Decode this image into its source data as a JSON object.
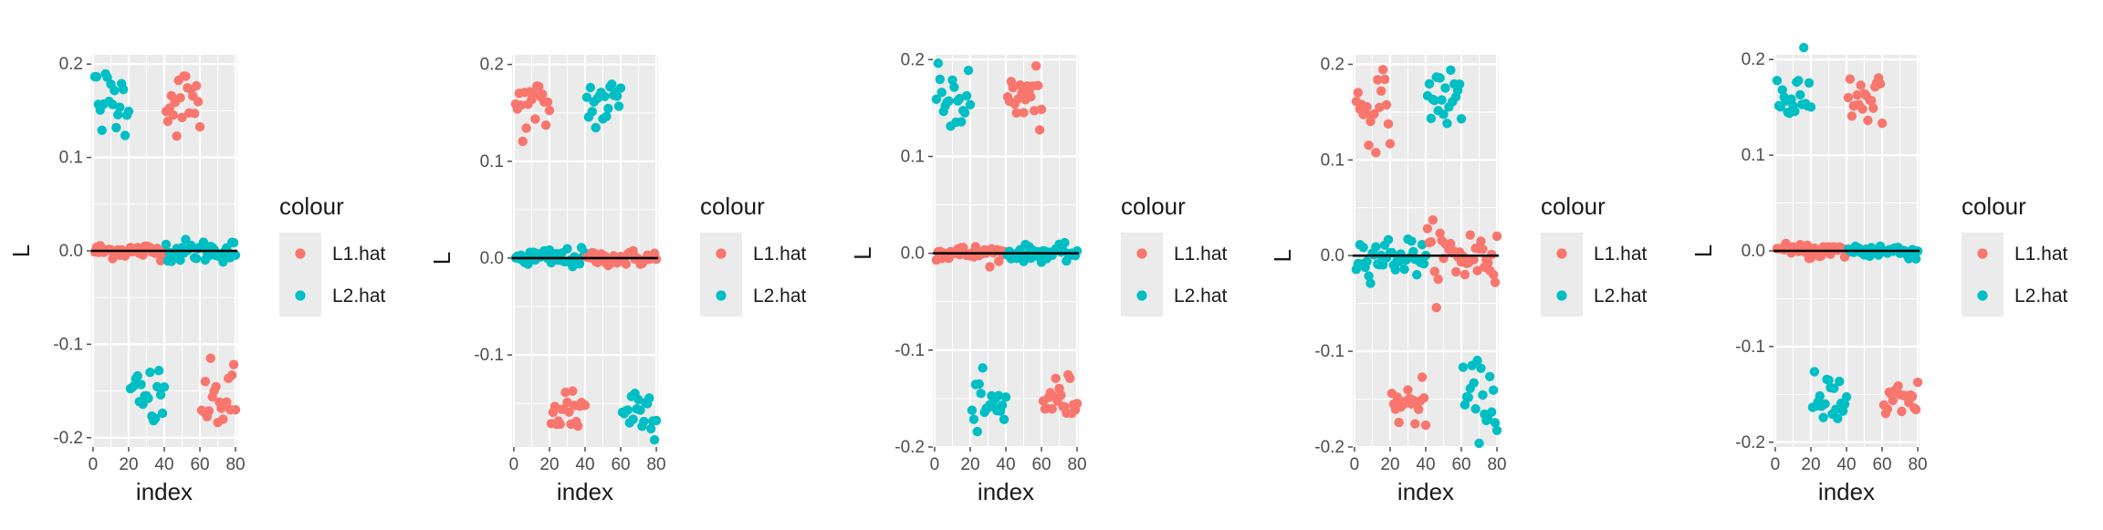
{
  "theme": {
    "panel_bg": "#EBEBEB",
    "grid_color": "#FFFFFF",
    "legend_key_bg": "#EBEBEB",
    "text_color": "#1A1A1A",
    "tick_color": "#4D4D4D",
    "zero_line_color": "#000000"
  },
  "legend": {
    "title": "colour",
    "entries": [
      {
        "label": "L1.hat",
        "color": "#F8766D"
      },
      {
        "label": "L2.hat",
        "color": "#00BFC4"
      }
    ]
  },
  "chart_data": [
    {
      "type": "scatter",
      "xlabel": "index",
      "ylabel": "L",
      "xlim": [
        -1,
        81
      ],
      "ylim": [
        -0.21,
        0.21
      ],
      "x_ticks": [
        0,
        20,
        40,
        60,
        80
      ],
      "x_tick_labels": [
        "0",
        "20",
        "40",
        "60",
        "80"
      ],
      "y_ticks": [
        -0.2,
        -0.1,
        0.0,
        0.1,
        0.2
      ],
      "y_tick_labels": [
        "-0.2",
        "-0.1",
        "0.0",
        "0.1",
        "0.2"
      ],
      "grid": true,
      "legend_position": "right",
      "zero_line": true,
      "clusters": [
        {
          "series": "L1.hat",
          "x": [
            1,
            40
          ],
          "y_center": 0.0,
          "spread": 0.004
        },
        {
          "series": "L2.hat",
          "x": [
            41,
            80
          ],
          "y_center": 0.0,
          "spread": 0.006
        },
        {
          "series": "L2.hat",
          "x": [
            1,
            20
          ],
          "y_center": 0.16,
          "spread": 0.018
        },
        {
          "series": "L1.hat",
          "x": [
            41,
            60
          ],
          "y_center": 0.16,
          "spread": 0.018
        },
        {
          "series": "L2.hat",
          "x": [
            21,
            40
          ],
          "y_center": -0.16,
          "spread": 0.018
        },
        {
          "series": "L1.hat",
          "x": [
            61,
            80
          ],
          "y_center": -0.16,
          "spread": 0.018
        }
      ]
    },
    {
      "type": "scatter",
      "xlabel": "index",
      "ylabel": "L",
      "xlim": [
        -1,
        81
      ],
      "ylim": [
        -0.195,
        0.21
      ],
      "x_ticks": [
        0,
        20,
        40,
        60,
        80
      ],
      "x_tick_labels": [
        "0",
        "20",
        "40",
        "60",
        "80"
      ],
      "y_ticks": [
        -0.1,
        0.0,
        0.1,
        0.2
      ],
      "y_tick_labels": [
        "-0.1",
        "0.0",
        "0.1",
        "0.2"
      ],
      "grid": true,
      "legend_position": "right",
      "zero_line": true,
      "clusters": [
        {
          "series": "L2.hat",
          "x": [
            1,
            40
          ],
          "y_center": 0.0,
          "spread": 0.005
        },
        {
          "series": "L1.hat",
          "x": [
            41,
            80
          ],
          "y_center": 0.0,
          "spread": 0.004
        },
        {
          "series": "L1.hat",
          "x": [
            1,
            20
          ],
          "y_center": 0.155,
          "spread": 0.015
        },
        {
          "series": "L2.hat",
          "x": [
            41,
            60
          ],
          "y_center": 0.16,
          "spread": 0.015
        },
        {
          "series": "L1.hat",
          "x": [
            21,
            40
          ],
          "y_center": -0.155,
          "spread": 0.015
        },
        {
          "series": "L2.hat",
          "x": [
            61,
            80
          ],
          "y_center": -0.155,
          "spread": 0.015
        }
      ]
    },
    {
      "type": "scatter",
      "xlabel": "index",
      "ylabel": "L",
      "xlim": [
        -1,
        81
      ],
      "ylim": [
        -0.2,
        0.205
      ],
      "x_ticks": [
        0,
        20,
        40,
        60,
        80
      ],
      "x_tick_labels": [
        "0",
        "20",
        "40",
        "60",
        "80"
      ],
      "y_ticks": [
        -0.2,
        -0.1,
        0.0,
        0.1,
        0.2
      ],
      "y_tick_labels": [
        "-0.2",
        "-0.1",
        "0.0",
        "0.1",
        "0.2"
      ],
      "grid": true,
      "legend_position": "right",
      "zero_line": true,
      "clusters": [
        {
          "series": "L1.hat",
          "x": [
            1,
            40
          ],
          "y_center": 0.0,
          "spread": 0.004
        },
        {
          "series": "L2.hat",
          "x": [
            41,
            80
          ],
          "y_center": 0.0,
          "spread": 0.004
        },
        {
          "series": "L2.hat",
          "x": [
            1,
            20
          ],
          "y_center": 0.16,
          "spread": 0.016
        },
        {
          "series": "L1.hat",
          "x": [
            41,
            60
          ],
          "y_center": 0.16,
          "spread": 0.016
        },
        {
          "series": "L2.hat",
          "x": [
            21,
            40
          ],
          "y_center": -0.16,
          "spread": 0.015
        },
        {
          "series": "L1.hat",
          "x": [
            61,
            80
          ],
          "y_center": -0.15,
          "spread": 0.012
        }
      ]
    },
    {
      "type": "scatter",
      "xlabel": "index",
      "ylabel": "L",
      "xlim": [
        -1,
        81
      ],
      "ylim": [
        -0.2,
        0.21
      ],
      "x_ticks": [
        0,
        20,
        40,
        60,
        80
      ],
      "x_tick_labels": [
        "0",
        "20",
        "40",
        "60",
        "80"
      ],
      "y_ticks": [
        -0.2,
        -0.1,
        0.0,
        0.1,
        0.2
      ],
      "y_tick_labels": [
        "-0.2",
        "-0.1",
        "0.0",
        "0.1",
        "0.2"
      ],
      "grid": true,
      "legend_position": "right",
      "zero_line": true,
      "clusters": [
        {
          "series": "L2.hat",
          "x": [
            1,
            40
          ],
          "y_center": 0.0,
          "spread": 0.01
        },
        {
          "series": "L1.hat",
          "x": [
            41,
            80
          ],
          "y_center": 0.0,
          "spread": 0.016
        },
        {
          "series": "L1.hat",
          "x": [
            1,
            20
          ],
          "y_center": 0.155,
          "spread": 0.018
        },
        {
          "series": "L2.hat",
          "x": [
            41,
            60
          ],
          "y_center": 0.165,
          "spread": 0.015
        },
        {
          "series": "L1.hat",
          "x": [
            21,
            40
          ],
          "y_center": -0.155,
          "spread": 0.012
        },
        {
          "series": "L2.hat",
          "x": [
            61,
            80
          ],
          "y_center": -0.15,
          "spread": 0.018
        }
      ]
    },
    {
      "type": "scatter",
      "xlabel": "index",
      "ylabel": "L",
      "xlim": [
        -1,
        81
      ],
      "ylim": [
        -0.205,
        0.205
      ],
      "x_ticks": [
        0,
        20,
        40,
        60,
        80
      ],
      "x_tick_labels": [
        "0",
        "20",
        "40",
        "60",
        "80"
      ],
      "y_ticks": [
        -0.2,
        -0.1,
        0.0,
        0.1,
        0.2
      ],
      "y_tick_labels": [
        "-0.2",
        "-0.1",
        "0.0",
        "0.1",
        "0.2"
      ],
      "grid": true,
      "legend_position": "right",
      "zero_line": true,
      "clusters": [
        {
          "series": "L1.hat",
          "x": [
            1,
            40
          ],
          "y_center": 0.0,
          "spread": 0.004
        },
        {
          "series": "L2.hat",
          "x": [
            41,
            80
          ],
          "y_center": 0.0,
          "spread": 0.004
        },
        {
          "series": "L2.hat",
          "x": [
            1,
            20
          ],
          "y_center": 0.16,
          "spread": 0.016
        },
        {
          "series": "L1.hat",
          "x": [
            41,
            60
          ],
          "y_center": 0.16,
          "spread": 0.016
        },
        {
          "series": "L2.hat",
          "x": [
            21,
            40
          ],
          "y_center": -0.16,
          "spread": 0.016
        },
        {
          "series": "L1.hat",
          "x": [
            61,
            80
          ],
          "y_center": -0.16,
          "spread": 0.012
        }
      ]
    }
  ]
}
